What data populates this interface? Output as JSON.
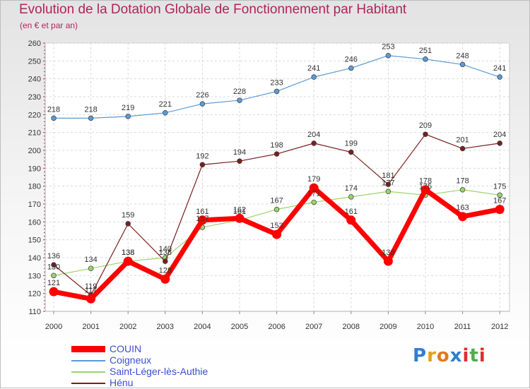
{
  "title": "Evolution de la Dotation Globale de Fonctionnement par Habitant",
  "subtitle": "(en € et par an)",
  "brand": {
    "logo_text": "Proxiti",
    "letters": [
      "P",
      "r",
      "o",
      "x",
      "i",
      "t",
      "i"
    ]
  },
  "chart_data": {
    "type": "line",
    "title": "Evolution de la Dotation Globale de Fonctionnement par Habitant",
    "subtitle": "(en € et par an)",
    "x": [
      "2000",
      "2001",
      "2002",
      "2003",
      "2004",
      "2005",
      "2006",
      "2007",
      "2008",
      "2009",
      "2010",
      "2011",
      "2012"
    ],
    "ylim": [
      110,
      260
    ],
    "yticks": [
      110,
      120,
      130,
      140,
      150,
      160,
      170,
      180,
      190,
      200,
      210,
      220,
      230,
      240,
      250,
      260
    ],
    "grid": true,
    "legend_position": "bottom-left",
    "series": [
      {
        "name": "COUIN",
        "color": "#ff0000",
        "values": [
          121,
          117,
          138,
          128,
          161,
          162,
          153,
          179,
          161,
          138,
          178,
          163,
          167
        ],
        "labels": [
          "121",
          "117",
          "138",
          "128",
          "161",
          "162",
          "153",
          "179",
          "161",
          "138",
          "178",
          "163",
          "167"
        ]
      },
      {
        "name": "Coigneux",
        "color": "#5b9bd5",
        "values": [
          218,
          218,
          219,
          221,
          226,
          228,
          233,
          241,
          246,
          253,
          251,
          248,
          241
        ],
        "labels": [
          "218",
          "218",
          "219",
          "221",
          "226",
          "228",
          "233",
          "241",
          "246",
          "253",
          "251",
          "248",
          "241"
        ]
      },
      {
        "name": "Saint-Léger-lès-Authie",
        "color": "#9ad36a",
        "values": [
          130,
          134,
          138,
          140,
          157,
          161,
          167,
          171,
          174,
          177,
          175,
          178,
          175
        ],
        "labels": [
          "130",
          "134",
          "138",
          "140",
          "157",
          "161",
          "167",
          "171",
          "174",
          "177",
          "175",
          "178",
          "175"
        ]
      },
      {
        "name": "Hénu",
        "color": "#7a1f1f",
        "values": [
          136,
          119,
          159,
          138,
          192,
          194,
          198,
          204,
          199,
          181,
          209,
          201,
          204
        ],
        "labels": [
          "136",
          "119",
          "159",
          "138",
          "192",
          "194",
          "198",
          "204",
          "199",
          "181",
          "209",
          "201",
          "204"
        ]
      }
    ]
  }
}
